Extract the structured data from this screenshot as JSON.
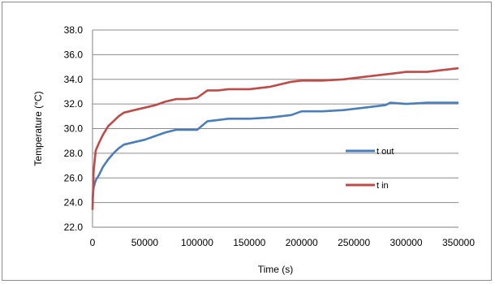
{
  "chart_data": {
    "type": "line",
    "title": "",
    "xlabel": "Time (s)",
    "ylabel": "Temperature (°C)",
    "xlim": [
      0,
      350000
    ],
    "ylim": [
      22.0,
      38.0
    ],
    "x_ticks": [
      "0",
      "50000",
      "100000",
      "150000",
      "200000",
      "250000",
      "300000",
      "350000"
    ],
    "y_ticks": [
      "22.0",
      "24.0",
      "26.0",
      "28.0",
      "30.0",
      "32.0",
      "34.0",
      "36.0",
      "38.0"
    ],
    "grid": "horizontal",
    "legend_position": "right",
    "series": [
      {
        "name": "t out",
        "color": "#4a7ebb",
        "points": [
          [
            0,
            24.2
          ],
          [
            1000,
            25.2
          ],
          [
            3000,
            25.8
          ],
          [
            6000,
            26.2
          ],
          [
            10000,
            26.9
          ],
          [
            15000,
            27.5
          ],
          [
            20000,
            28.0
          ],
          [
            25000,
            28.4
          ],
          [
            30000,
            28.7
          ],
          [
            40000,
            28.9
          ],
          [
            50000,
            29.1
          ],
          [
            60000,
            29.4
          ],
          [
            70000,
            29.7
          ],
          [
            80000,
            29.9
          ],
          [
            90000,
            29.9
          ],
          [
            100000,
            29.9
          ],
          [
            110000,
            30.6
          ],
          [
            120000,
            30.7
          ],
          [
            130000,
            30.8
          ],
          [
            150000,
            30.8
          ],
          [
            170000,
            30.9
          ],
          [
            190000,
            31.1
          ],
          [
            200000,
            31.4
          ],
          [
            220000,
            31.4
          ],
          [
            240000,
            31.5
          ],
          [
            260000,
            31.7
          ],
          [
            280000,
            31.9
          ],
          [
            285000,
            32.1
          ],
          [
            300000,
            32.0
          ],
          [
            320000,
            32.1
          ],
          [
            340000,
            32.1
          ],
          [
            350000,
            32.1
          ]
        ]
      },
      {
        "name": "t in",
        "color": "#be4b48",
        "points": [
          [
            0,
            23.4
          ],
          [
            1000,
            26.5
          ],
          [
            3000,
            28.2
          ],
          [
            6000,
            28.8
          ],
          [
            10000,
            29.5
          ],
          [
            15000,
            30.2
          ],
          [
            20000,
            30.6
          ],
          [
            25000,
            31.0
          ],
          [
            30000,
            31.3
          ],
          [
            40000,
            31.5
          ],
          [
            50000,
            31.7
          ],
          [
            60000,
            31.9
          ],
          [
            70000,
            32.2
          ],
          [
            80000,
            32.4
          ],
          [
            90000,
            32.4
          ],
          [
            100000,
            32.5
          ],
          [
            110000,
            33.1
          ],
          [
            120000,
            33.1
          ],
          [
            130000,
            33.2
          ],
          [
            150000,
            33.2
          ],
          [
            170000,
            33.4
          ],
          [
            190000,
            33.8
          ],
          [
            200000,
            33.9
          ],
          [
            220000,
            33.9
          ],
          [
            240000,
            34.0
          ],
          [
            260000,
            34.2
          ],
          [
            280000,
            34.4
          ],
          [
            290000,
            34.5
          ],
          [
            300000,
            34.6
          ],
          [
            320000,
            34.6
          ],
          [
            340000,
            34.8
          ],
          [
            350000,
            34.9
          ]
        ]
      }
    ]
  }
}
